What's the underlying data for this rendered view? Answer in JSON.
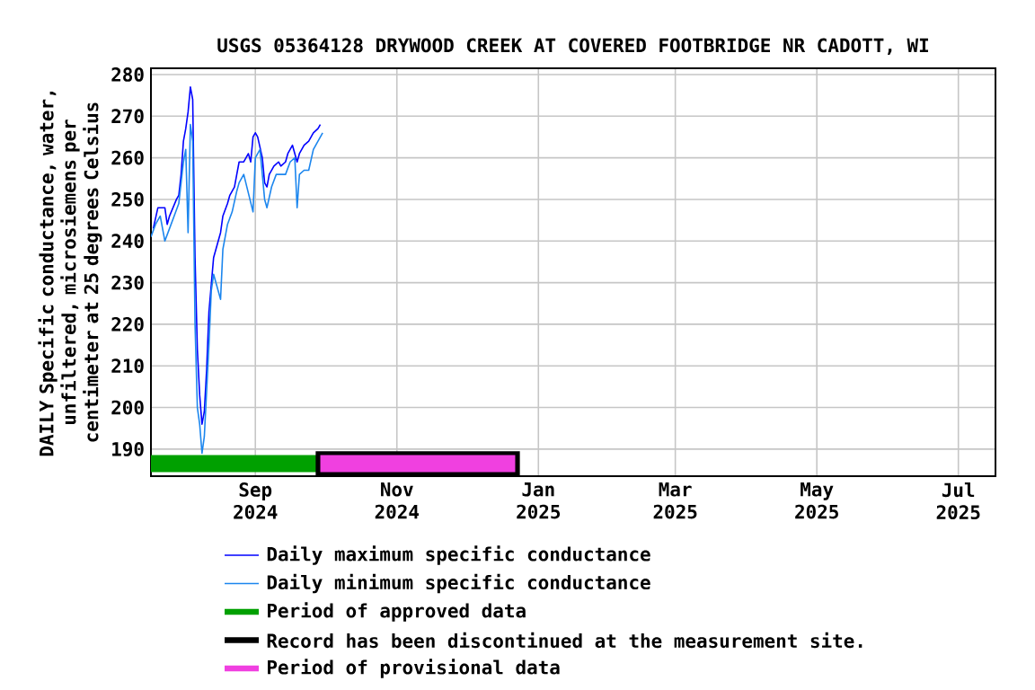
{
  "chart_data": {
    "type": "line",
    "title": "USGS 05364128 DRYWOOD CREEK AT COVERED FOOTBRIDGE NR CADOTT, WI",
    "ylabel": "DAILY Specific conductance, water, unfiltered, microsiemens per centimeter at 25 degrees Celsius",
    "xlim": [
      "2024-07-18",
      "2025-07-17"
    ],
    "xticks": [
      {
        "value": "2024-09-01",
        "label": "Sep 2024"
      },
      {
        "value": "2024-11-01",
        "label": "Nov 2024"
      },
      {
        "value": "2025-01-01",
        "label": "Jan 2025"
      },
      {
        "value": "2025-03-01",
        "label": "Mar 2025"
      },
      {
        "value": "2025-05-01",
        "label": "May 2025"
      },
      {
        "value": "2025-07-01",
        "label": "Jul 2025"
      }
    ],
    "ylim": [
      183.5,
      281.5
    ],
    "yticks": [
      190,
      200,
      210,
      220,
      230,
      240,
      250,
      260,
      270,
      280
    ],
    "grid": true,
    "legend": "bottom",
    "line_style": "solid",
    "series": [
      {
        "name": "Daily maximum specific conductance",
        "color": "#0000ff",
        "x": [
          "2024-07-19",
          "2024-07-21",
          "2024-07-24",
          "2024-07-25",
          "2024-07-26",
          "2024-07-29",
          "2024-07-30",
          "2024-07-31",
          "2024-08-01",
          "2024-08-02",
          "2024-08-03",
          "2024-08-04",
          "2024-08-05",
          "2024-08-06",
          "2024-08-07",
          "2024-08-08",
          "2024-08-09",
          "2024-08-10",
          "2024-08-11",
          "2024-08-12",
          "2024-08-14",
          "2024-08-15",
          "2024-08-17",
          "2024-08-18",
          "2024-08-20",
          "2024-08-21",
          "2024-08-23",
          "2024-08-24",
          "2024-08-25",
          "2024-08-27",
          "2024-08-29",
          "2024-08-30",
          "2024-08-31",
          "2024-09-01",
          "2024-09-02",
          "2024-09-04",
          "2024-09-05",
          "2024-09-06",
          "2024-09-07",
          "2024-09-09",
          "2024-09-11",
          "2024-09-12",
          "2024-09-14",
          "2024-09-15",
          "2024-09-17",
          "2024-09-18",
          "2024-09-19",
          "2024-09-20",
          "2024-09-22",
          "2024-09-24",
          "2024-09-26",
          "2024-09-28",
          "2024-09-29"
        ],
        "values": [
          243,
          248,
          248,
          244,
          246,
          250,
          251,
          256,
          264,
          267,
          271,
          277,
          274,
          236,
          214,
          203,
          196,
          199,
          209,
          223,
          236,
          238,
          242,
          246,
          249,
          251,
          253,
          256,
          259,
          259,
          261,
          259,
          265,
          266,
          265,
          260,
          254,
          253,
          256,
          258,
          259,
          258,
          259,
          261,
          263,
          261,
          259,
          261,
          263,
          264,
          266,
          267,
          268
        ]
      },
      {
        "name": "Daily minimum specific conductance",
        "color": "#1c86ee",
        "x": [
          "2024-07-18",
          "2024-07-20",
          "2024-07-22",
          "2024-07-24",
          "2024-07-26",
          "2024-07-28",
          "2024-07-30",
          "2024-08-01",
          "2024-08-02",
          "2024-08-03",
          "2024-08-04",
          "2024-08-05",
          "2024-08-06",
          "2024-08-07",
          "2024-08-08",
          "2024-08-09",
          "2024-08-10",
          "2024-08-11",
          "2024-08-12",
          "2024-08-13",
          "2024-08-14",
          "2024-08-17",
          "2024-08-18",
          "2024-08-20",
          "2024-08-22",
          "2024-08-24",
          "2024-08-25",
          "2024-08-27",
          "2024-08-31",
          "2024-09-01",
          "2024-09-03",
          "2024-09-05",
          "2024-09-06",
          "2024-09-08",
          "2024-09-10",
          "2024-09-12",
          "2024-09-14",
          "2024-09-16",
          "2024-09-18",
          "2024-09-19",
          "2024-09-20",
          "2024-09-22",
          "2024-09-24",
          "2024-09-26",
          "2024-09-28",
          "2024-09-30"
        ],
        "values": [
          241,
          244,
          246,
          240,
          243,
          246,
          249,
          259,
          262,
          242,
          268,
          264,
          220,
          200,
          196,
          189,
          193,
          204,
          215,
          228,
          232,
          226,
          238,
          244,
          247,
          252,
          254,
          256,
          247,
          260,
          262,
          250,
          248,
          253,
          256,
          256,
          256,
          259,
          260,
          248,
          256,
          257,
          257,
          262,
          264,
          266
        ]
      }
    ],
    "bands": [
      {
        "axis": "x",
        "from": "2024-07-18",
        "to": "2024-09-28",
        "label": "Period of approved data",
        "color": "#00a000"
      },
      {
        "axis": "x",
        "from": "2024-09-27",
        "to": "2024-12-24",
        "label": "Record has been discontinued at the measurement site.",
        "color": "#000000"
      },
      {
        "axis": "x",
        "from": "2024-09-29",
        "to": "2024-12-22",
        "label": "Period of provisional data",
        "color": "#f040e0"
      }
    ]
  }
}
